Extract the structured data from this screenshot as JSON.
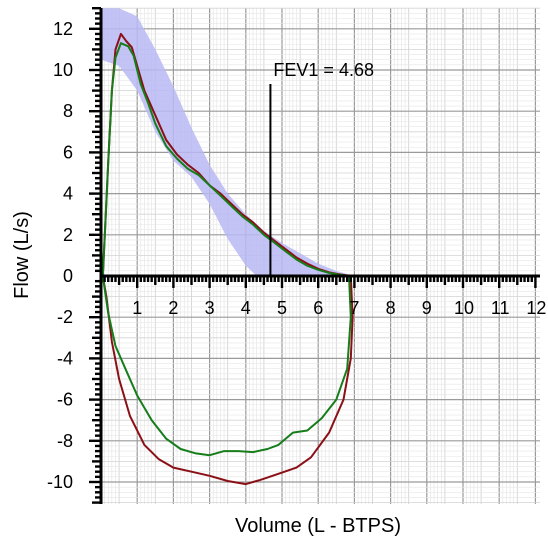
{
  "chart_data": {
    "type": "line",
    "xlabel": "Volume (L - BTPS)",
    "ylabel": "Flow (L/s)",
    "xlim": [
      0,
      12
    ],
    "ylim": [
      -11,
      13
    ],
    "x_ticks": [
      1,
      2,
      3,
      4,
      5,
      6,
      7,
      8,
      9,
      10,
      11,
      12
    ],
    "y_ticks": [
      12,
      10,
      8,
      6,
      4,
      2,
      0,
      -2,
      -4,
      -6,
      -8,
      -10
    ],
    "grid": true,
    "annotations": [
      {
        "text": "FEV1 = 4.68",
        "x": 4.68
      }
    ],
    "predicted_band": {
      "color": "#b8b8f4",
      "upper": [
        [
          0,
          13
        ],
        [
          0.5,
          13
        ],
        [
          1.0,
          12.6
        ],
        [
          1.5,
          11.0
        ],
        [
          2.0,
          9.2
        ],
        [
          2.5,
          7.2
        ],
        [
          3.0,
          5.4
        ],
        [
          3.5,
          4.0
        ],
        [
          4.0,
          3.0
        ],
        [
          4.5,
          2.2
        ],
        [
          5.0,
          1.6
        ],
        [
          5.5,
          1.1
        ],
        [
          6.0,
          0.6
        ],
        [
          6.5,
          0.25
        ],
        [
          6.9,
          0.05
        ]
      ],
      "lower": [
        [
          6.9,
          0
        ],
        [
          6.0,
          0
        ],
        [
          5.0,
          0
        ],
        [
          4.3,
          0
        ],
        [
          4.0,
          0.5
        ],
        [
          3.5,
          1.8
        ],
        [
          3.0,
          3.5
        ],
        [
          2.5,
          4.8
        ],
        [
          2.0,
          5.6
        ],
        [
          1.5,
          7.0
        ],
        [
          1.0,
          9.0
        ],
        [
          0.5,
          10.2
        ],
        [
          0,
          10.5
        ]
      ]
    },
    "series": [
      {
        "color": "#8b0f16",
        "points": [
          [
            0.05,
            0
          ],
          [
            0.12,
            2.5
          ],
          [
            0.2,
            5.5
          ],
          [
            0.3,
            9
          ],
          [
            0.4,
            11
          ],
          [
            0.55,
            11.75
          ],
          [
            0.7,
            11.4
          ],
          [
            0.85,
            11.1
          ],
          [
            1.0,
            10.2
          ],
          [
            1.2,
            9.0
          ],
          [
            1.5,
            7.8
          ],
          [
            1.8,
            6.6
          ],
          [
            2.1,
            5.9
          ],
          [
            2.4,
            5.4
          ],
          [
            2.7,
            5.0
          ],
          [
            3.0,
            4.4
          ],
          [
            3.3,
            4.0
          ],
          [
            3.6,
            3.5
          ],
          [
            3.9,
            3.0
          ],
          [
            4.2,
            2.6
          ],
          [
            4.5,
            2.1
          ],
          [
            4.8,
            1.7
          ],
          [
            5.1,
            1.3
          ],
          [
            5.4,
            0.9
          ],
          [
            5.7,
            0.6
          ],
          [
            6.0,
            0.35
          ],
          [
            6.3,
            0.18
          ],
          [
            6.6,
            0.08
          ],
          [
            6.9,
            0
          ],
          [
            6.95,
            -2
          ],
          [
            6.9,
            -4
          ],
          [
            6.7,
            -6
          ],
          [
            6.3,
            -7.6
          ],
          [
            5.8,
            -8.8
          ],
          [
            5.4,
            -9.3
          ],
          [
            4.9,
            -9.6
          ],
          [
            4.4,
            -9.9
          ],
          [
            4.0,
            -10.1
          ],
          [
            3.5,
            -9.95
          ],
          [
            3.0,
            -9.7
          ],
          [
            2.5,
            -9.5
          ],
          [
            2.0,
            -9.3
          ],
          [
            1.6,
            -8.9
          ],
          [
            1.2,
            -8.2
          ],
          [
            0.8,
            -6.8
          ],
          [
            0.5,
            -5.0
          ],
          [
            0.3,
            -3.2
          ],
          [
            0.15,
            -1.0
          ],
          [
            0.05,
            0
          ]
        ]
      },
      {
        "color": "#167d1a",
        "points": [
          [
            0.05,
            0
          ],
          [
            0.12,
            2.5
          ],
          [
            0.2,
            5.5
          ],
          [
            0.3,
            9
          ],
          [
            0.4,
            10.6
          ],
          [
            0.55,
            11.3
          ],
          [
            0.75,
            11.15
          ],
          [
            0.9,
            10.7
          ],
          [
            1.0,
            10.0
          ],
          [
            1.1,
            9.3
          ],
          [
            1.3,
            8.4
          ],
          [
            1.5,
            7.4
          ],
          [
            1.8,
            6.3
          ],
          [
            2.1,
            5.7
          ],
          [
            2.4,
            5.2
          ],
          [
            2.7,
            4.9
          ],
          [
            3.0,
            4.4
          ],
          [
            3.3,
            3.9
          ],
          [
            3.6,
            3.4
          ],
          [
            3.9,
            2.9
          ],
          [
            4.2,
            2.5
          ],
          [
            4.5,
            2.0
          ],
          [
            4.8,
            1.6
          ],
          [
            5.1,
            1.2
          ],
          [
            5.4,
            0.8
          ],
          [
            5.7,
            0.5
          ],
          [
            6.0,
            0.3
          ],
          [
            6.3,
            0.15
          ],
          [
            6.6,
            0.06
          ],
          [
            6.85,
            0
          ],
          [
            6.9,
            -2
          ],
          [
            6.8,
            -4.5
          ],
          [
            6.5,
            -6.0
          ],
          [
            6.1,
            -6.9
          ],
          [
            5.7,
            -7.5
          ],
          [
            5.3,
            -7.6
          ],
          [
            4.9,
            -8.2
          ],
          [
            4.6,
            -8.4
          ],
          [
            4.2,
            -8.55
          ],
          [
            3.8,
            -8.5
          ],
          [
            3.4,
            -8.5
          ],
          [
            3.0,
            -8.7
          ],
          [
            2.6,
            -8.6
          ],
          [
            2.2,
            -8.4
          ],
          [
            1.8,
            -7.9
          ],
          [
            1.4,
            -7.0
          ],
          [
            1.0,
            -5.8
          ],
          [
            0.7,
            -4.6
          ],
          [
            0.4,
            -3.4
          ],
          [
            0.2,
            -1.8
          ],
          [
            0.05,
            0
          ]
        ]
      }
    ]
  }
}
